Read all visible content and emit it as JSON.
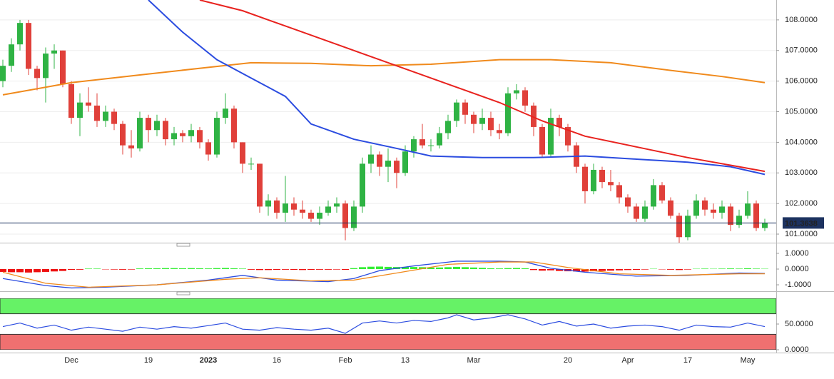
{
  "chart_data": [
    {
      "type": "candlestick",
      "categories": [
        null,
        null,
        null,
        null,
        null,
        null,
        null,
        null,
        "Dec",
        null,
        null,
        null,
        null,
        null,
        null,
        null,
        null,
        "19",
        null,
        null,
        null,
        null,
        null,
        null,
        "2023",
        null,
        null,
        null,
        null,
        null,
        null,
        null,
        "16",
        null,
        null,
        null,
        null,
        null,
        null,
        null,
        "Feb",
        null,
        null,
        null,
        null,
        null,
        null,
        "13",
        null,
        null,
        null,
        null,
        null,
        null,
        null,
        "Mar",
        null,
        null,
        null,
        null,
        null,
        null,
        null,
        null,
        null,
        null,
        "20",
        null,
        null,
        null,
        null,
        null,
        null,
        "Apr",
        null,
        null,
        null,
        null,
        null,
        null,
        "17",
        null,
        null,
        null,
        null,
        null,
        null,
        "May",
        null,
        null
      ],
      "ohlc": [
        [
          106.0,
          106.7,
          105.8,
          106.5
        ],
        [
          106.5,
          107.4,
          106.3,
          107.2
        ],
        [
          107.2,
          108.0,
          107.0,
          107.9
        ],
        [
          107.9,
          108.0,
          106.2,
          106.4
        ],
        [
          106.4,
          106.5,
          105.7,
          106.1
        ],
        [
          106.1,
          107.1,
          105.3,
          106.9
        ],
        [
          106.9,
          107.2,
          106.4,
          107.0
        ],
        [
          107.0,
          107.0,
          105.8,
          105.9
        ],
        [
          105.9,
          106.0,
          104.6,
          104.8
        ],
        [
          104.8,
          105.6,
          104.2,
          105.3
        ],
        [
          105.3,
          105.8,
          105.0,
          105.2
        ],
        [
          105.2,
          105.6,
          104.5,
          104.7
        ],
        [
          104.7,
          105.2,
          104.5,
          105.0
        ],
        [
          105.0,
          105.1,
          104.4,
          104.6
        ],
        [
          104.6,
          104.7,
          103.6,
          103.9
        ],
        [
          103.9,
          104.4,
          103.5,
          103.8
        ],
        [
          103.8,
          105.0,
          103.7,
          104.8
        ],
        [
          104.8,
          104.9,
          104.0,
          104.4
        ],
        [
          104.4,
          104.9,
          104.2,
          104.7
        ],
        [
          104.7,
          104.8,
          103.9,
          104.1
        ],
        [
          104.1,
          104.5,
          103.9,
          104.3
        ],
        [
          104.3,
          104.4,
          104.0,
          104.2
        ],
        [
          104.2,
          104.6,
          104.0,
          104.4
        ],
        [
          104.4,
          104.5,
          103.8,
          104.0
        ],
        [
          104.0,
          104.1,
          103.4,
          103.6
        ],
        [
          103.6,
          105.0,
          103.5,
          104.8
        ],
        [
          104.8,
          105.6,
          104.6,
          105.1
        ],
        [
          105.1,
          105.2,
          103.8,
          104.0
        ],
        [
          104.0,
          104.0,
          103.0,
          103.3
        ],
        [
          103.3,
          103.5,
          103.1,
          103.3
        ],
        [
          103.3,
          103.3,
          101.7,
          101.9
        ],
        [
          101.9,
          102.3,
          101.6,
          102.1
        ],
        [
          102.1,
          102.2,
          101.5,
          101.7
        ],
        [
          101.7,
          102.9,
          101.4,
          102.0
        ],
        [
          102.0,
          102.2,
          101.6,
          101.8
        ],
        [
          101.8,
          102.1,
          101.5,
          101.7
        ],
        [
          101.7,
          101.8,
          101.4,
          101.5
        ],
        [
          101.5,
          101.9,
          101.3,
          101.7
        ],
        [
          101.7,
          102.1,
          101.6,
          101.9
        ],
        [
          101.9,
          102.2,
          101.7,
          102.0
        ],
        [
          102.0,
          102.1,
          100.8,
          101.2
        ],
        [
          101.2,
          102.1,
          101.1,
          101.9
        ],
        [
          101.9,
          103.5,
          101.7,
          103.3
        ],
        [
          103.3,
          103.9,
          103.0,
          103.6
        ],
        [
          103.6,
          103.7,
          102.9,
          103.2
        ],
        [
          103.2,
          103.8,
          102.7,
          103.4
        ],
        [
          103.4,
          103.5,
          102.5,
          103.0
        ],
        [
          103.0,
          103.9,
          102.9,
          103.7
        ],
        [
          103.7,
          104.2,
          103.5,
          104.1
        ],
        [
          104.1,
          104.6,
          103.8,
          103.9
        ],
        [
          103.9,
          104.1,
          103.7,
          103.9
        ],
        [
          103.9,
          104.5,
          103.8,
          104.3
        ],
        [
          104.3,
          104.9,
          104.1,
          104.7
        ],
        [
          104.7,
          105.4,
          104.5,
          105.3
        ],
        [
          105.3,
          105.4,
          104.6,
          104.9
        ],
        [
          104.9,
          105.0,
          104.3,
          104.6
        ],
        [
          104.6,
          105.1,
          104.4,
          104.8
        ],
        [
          104.8,
          105.0,
          104.2,
          104.4
        ],
        [
          104.4,
          104.6,
          104.1,
          104.3
        ],
        [
          104.3,
          105.8,
          104.2,
          105.6
        ],
        [
          105.6,
          105.9,
          105.4,
          105.7
        ],
        [
          105.7,
          105.8,
          105.0,
          105.2
        ],
        [
          105.2,
          105.3,
          104.2,
          104.5
        ],
        [
          104.5,
          104.6,
          103.5,
          103.6
        ],
        [
          103.6,
          105.1,
          103.5,
          104.8
        ],
        [
          104.8,
          104.9,
          104.2,
          104.5
        ],
        [
          104.5,
          104.6,
          103.7,
          103.9
        ],
        [
          103.9,
          104.0,
          103.0,
          103.2
        ],
        [
          103.2,
          103.3,
          102.0,
          102.4
        ],
        [
          102.4,
          103.3,
          102.3,
          103.1
        ],
        [
          103.1,
          103.2,
          102.5,
          102.7
        ],
        [
          102.7,
          103.1,
          102.4,
          102.6
        ],
        [
          102.6,
          102.7,
          102.0,
          102.2
        ],
        [
          102.2,
          102.3,
          101.7,
          101.9
        ],
        [
          101.9,
          102.0,
          101.4,
          101.5
        ],
        [
          101.5,
          102.1,
          101.4,
          101.9
        ],
        [
          101.9,
          102.8,
          101.8,
          102.6
        ],
        [
          102.6,
          102.7,
          102.0,
          102.1
        ],
        [
          102.1,
          102.2,
          101.5,
          101.6
        ],
        [
          101.6,
          101.7,
          100.7,
          100.9
        ],
        [
          100.9,
          101.8,
          100.8,
          101.6
        ],
        [
          101.6,
          102.3,
          101.5,
          102.1
        ],
        [
          102.1,
          102.2,
          101.6,
          101.8
        ],
        [
          101.8,
          102.0,
          101.5,
          101.7
        ],
        [
          101.7,
          102.1,
          101.5,
          101.9
        ],
        [
          101.9,
          102.0,
          101.1,
          101.3
        ],
        [
          101.3,
          101.8,
          101.2,
          101.6
        ],
        [
          101.6,
          102.4,
          101.5,
          102.0
        ],
        [
          102.0,
          102.1,
          101.1,
          101.2
        ],
        [
          101.2,
          101.5,
          101.1,
          101.36
        ]
      ],
      "up_color": "#2fb344",
      "down_color": "#e0403a",
      "series": [
        {
          "color": "#f08a1c",
          "x": [
            0,
            8,
            16,
            24,
            29,
            36,
            43,
            50,
            58,
            64,
            71,
            78,
            84,
            89
          ],
          "values": [
            105.55,
            105.95,
            106.2,
            106.45,
            106.6,
            106.58,
            106.5,
            106.55,
            106.7,
            106.7,
            106.6,
            106.35,
            106.15,
            105.95
          ]
        },
        {
          "color": "#2b4ce0",
          "x": [
            17,
            21,
            25,
            29,
            33,
            36,
            41,
            46,
            50,
            56,
            62,
            68,
            74,
            80,
            85,
            89
          ],
          "values": [
            108.65,
            107.6,
            106.7,
            106.1,
            105.5,
            104.6,
            104.1,
            103.8,
            103.55,
            103.5,
            103.5,
            103.55,
            103.45,
            103.35,
            103.2,
            102.95
          ]
        },
        {
          "color": "#e8221e",
          "x": [
            23,
            28,
            34,
            40,
            46,
            52,
            58,
            63,
            68,
            74,
            80,
            85,
            89
          ],
          "values": [
            108.65,
            108.3,
            107.7,
            107.1,
            106.5,
            105.9,
            105.3,
            104.7,
            104.2,
            103.85,
            103.5,
            103.25,
            103.05
          ]
        }
      ],
      "ylim": [
        100.72,
        108.65
      ],
      "yticks": [
        {
          "value": 101,
          "label": "101.0000"
        },
        {
          "value": 102,
          "label": "102.0000"
        },
        {
          "value": 103,
          "label": "103.0000"
        },
        {
          "value": 104,
          "label": "104.0000"
        },
        {
          "value": 105,
          "label": "105.0000"
        },
        {
          "value": 106,
          "label": "106.0000"
        },
        {
          "value": 107,
          "label": "107.0000"
        },
        {
          "value": 108,
          "label": "108.0000"
        }
      ],
      "last_price": 101.3638,
      "last_price_color": "#1d3260",
      "grid": true
    },
    {
      "type": "macd",
      "histogram": [
        -0.18,
        -0.2,
        -0.2,
        -0.22,
        -0.2,
        -0.18,
        -0.15,
        -0.12,
        -0.05,
        -0.04,
        0.03,
        0.03,
        -0.02,
        -0.03,
        -0.04,
        -0.03,
        0.04,
        0.05,
        0.05,
        0.06,
        0.06,
        0.05,
        0.06,
        0.05,
        0.04,
        0.06,
        0.07,
        0.05,
        0.03,
        -0.04,
        -0.06,
        -0.06,
        -0.05,
        -0.04,
        -0.05,
        -0.06,
        -0.05,
        -0.04,
        -0.04,
        -0.03,
        -0.05,
        0.06,
        0.12,
        0.15,
        0.16,
        0.14,
        0.13,
        0.14,
        0.13,
        0.12,
        0.1,
        0.1,
        0.12,
        0.14,
        0.12,
        0.1,
        0.08,
        0.05,
        0.04,
        0.06,
        0.07,
        0.05,
        -0.06,
        -0.1,
        -0.08,
        -0.12,
        -0.14,
        -0.15,
        -0.16,
        -0.14,
        -0.12,
        -0.1,
        -0.08,
        -0.06,
        -0.05,
        -0.03,
        0.02,
        -0.02,
        -0.04,
        -0.06,
        -0.03,
        0.02,
        0.03,
        0.02,
        0.03,
        0.04,
        0.03,
        0.05,
        0.03,
        0.02
      ],
      "up_color": "#33ee33",
      "down_color": "#ee1111",
      "series": [
        {
          "color": "#2b4ce0",
          "x": [
            0,
            5,
            8,
            12,
            18,
            24,
            28,
            32,
            38,
            41,
            44,
            48,
            53,
            58,
            61,
            64,
            68,
            74,
            80,
            86,
            89
          ],
          "values": [
            -0.6,
            -1.05,
            -1.2,
            -1.15,
            -1.0,
            -0.7,
            -0.4,
            -0.7,
            -0.8,
            -0.6,
            -0.1,
            0.2,
            0.5,
            0.5,
            0.45,
            0.05,
            -0.2,
            -0.45,
            -0.4,
            -0.25,
            -0.28
          ]
        },
        {
          "color": "#f08a1c",
          "x": [
            0,
            5,
            10,
            18,
            26,
            30,
            36,
            41,
            46,
            52,
            58,
            62,
            66,
            72,
            78,
            86,
            89
          ],
          "values": [
            -0.2,
            -0.9,
            -1.15,
            -1.0,
            -0.65,
            -0.55,
            -0.75,
            -0.7,
            -0.25,
            0.3,
            0.45,
            0.45,
            0.1,
            -0.3,
            -0.4,
            -0.3,
            -0.3
          ]
        }
      ],
      "ylim": [
        -1.27,
        1.45
      ],
      "yticks": [
        {
          "value": 1,
          "label": "1.0000"
        },
        {
          "value": 0,
          "label": "0.0000"
        },
        {
          "value": -1,
          "label": "-1.0000"
        }
      ]
    },
    {
      "type": "rsi",
      "series": [
        {
          "color": "#2b4ce0",
          "x": [
            0,
            2,
            4,
            6,
            8,
            10,
            12,
            14,
            16,
            18,
            20,
            22,
            24,
            26,
            28,
            30,
            32,
            34,
            36,
            38,
            40,
            42,
            44,
            46,
            48,
            50,
            52,
            53,
            55,
            57,
            59,
            61,
            63,
            65,
            67,
            69,
            71,
            73,
            75,
            77,
            79,
            81,
            83,
            85,
            87,
            89
          ],
          "values": [
            45,
            52,
            42,
            48,
            38,
            44,
            40,
            36,
            44,
            40,
            45,
            42,
            47,
            52,
            40,
            38,
            43,
            40,
            38,
            42,
            32,
            52,
            56,
            52,
            57,
            55,
            62,
            68,
            58,
            62,
            68,
            60,
            48,
            55,
            46,
            50,
            42,
            46,
            48,
            45,
            38,
            48,
            45,
            44,
            52,
            45
          ]
        }
      ],
      "bands": [
        {
          "from": 70,
          "to": 100,
          "color": "#66f266"
        },
        {
          "from": 0,
          "to": 30,
          "color": "#f07070"
        }
      ],
      "ylim": [
        0,
        100
      ],
      "yticks": [
        {
          "value": 50,
          "label": "50.0000"
        },
        {
          "value": 0,
          "label": "0.0000"
        }
      ]
    }
  ]
}
